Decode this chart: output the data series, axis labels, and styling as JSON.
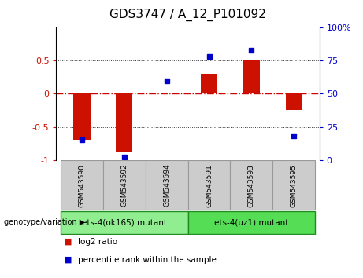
{
  "title": "GDS3747 / A_12_P101092",
  "samples": [
    "GSM543590",
    "GSM543592",
    "GSM543594",
    "GSM543591",
    "GSM543593",
    "GSM543595"
  ],
  "log2_ratio": [
    -0.7,
    -0.88,
    0.01,
    0.3,
    0.52,
    -0.25
  ],
  "percentile": [
    15,
    2,
    60,
    78,
    83,
    18
  ],
  "groups": [
    {
      "label": "ets-4(ok165) mutant",
      "samples": [
        0,
        1,
        2
      ],
      "color": "#90EE90"
    },
    {
      "label": "ets-4(uz1) mutant",
      "samples": [
        3,
        4,
        5
      ],
      "color": "#55DD55"
    }
  ],
  "bar_color": "#CC1100",
  "dot_color": "#0000CC",
  "ylim_left": [
    -1.0,
    1.0
  ],
  "ylim_right": [
    0,
    100
  ],
  "yticks_left": [
    -1.0,
    -0.5,
    0.0,
    0.5
  ],
  "ytick_labels_left": [
    "-1",
    "-0.5",
    "0",
    "0.5"
  ],
  "yticks_right": [
    0,
    25,
    50,
    75,
    100
  ],
  "ytick_labels_right": [
    "0",
    "25",
    "50",
    "75",
    "100%"
  ],
  "zero_line_color": "#CC0000",
  "dotted_line_color": "#333333",
  "bg_sample_strip": "#CCCCCC",
  "legend_log2": "log2 ratio",
  "legend_pct": "percentile rank within the sample",
  "genotype_label": "genotype/variation"
}
